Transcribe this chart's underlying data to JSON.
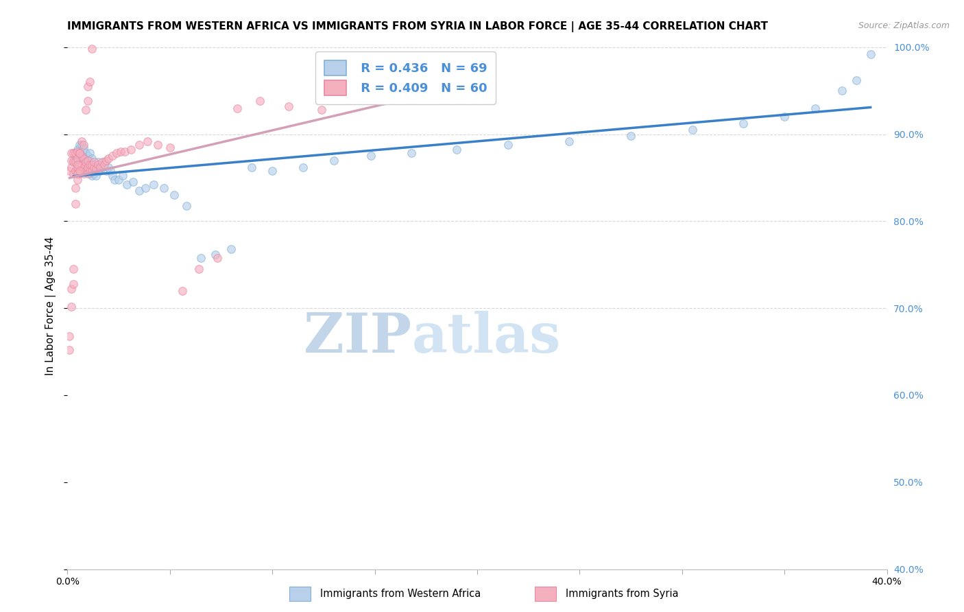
{
  "title": "IMMIGRANTS FROM WESTERN AFRICA VS IMMIGRANTS FROM SYRIA IN LABOR FORCE | AGE 35-44 CORRELATION CHART",
  "source": "Source: ZipAtlas.com",
  "ylabel": "In Labor Force | Age 35-44",
  "xlim": [
    0.0,
    0.4
  ],
  "ylim": [
    0.4,
    1.005
  ],
  "xticks": [
    0.0,
    0.05,
    0.1,
    0.15,
    0.2,
    0.25,
    0.3,
    0.35,
    0.4
  ],
  "xticklabels": [
    "0.0%",
    "",
    "",
    "",
    "",
    "",
    "",
    "",
    "40.0%"
  ],
  "yticks_right": [
    0.4,
    0.5,
    0.6,
    0.7,
    0.8,
    0.9,
    1.0
  ],
  "yticklabels_right": [
    "40.0%",
    "50.0%",
    "60.0%",
    "70.0%",
    "80.0%",
    "90.0%",
    "100.0%"
  ],
  "legend_r_blue": "R = 0.436",
  "legend_n_blue": "N = 69",
  "legend_r_pink": "R = 0.409",
  "legend_n_pink": "N = 60",
  "color_blue": "#b8d0ea",
  "color_pink": "#f5b0c0",
  "color_blue_text": "#4a90d9",
  "trendline_blue": "#3a80c9",
  "trendline_pink": "#d4a0b8",
  "watermark_color": "#ccdcf0",
  "background_color": "#ffffff",
  "blue_x": [
    0.003,
    0.004,
    0.005,
    0.005,
    0.006,
    0.006,
    0.007,
    0.007,
    0.007,
    0.008,
    0.008,
    0.008,
    0.009,
    0.009,
    0.009,
    0.01,
    0.01,
    0.01,
    0.011,
    0.011,
    0.011,
    0.011,
    0.012,
    0.012,
    0.012,
    0.013,
    0.013,
    0.014,
    0.014,
    0.015,
    0.015,
    0.016,
    0.017,
    0.018,
    0.019,
    0.02,
    0.021,
    0.022,
    0.023,
    0.025,
    0.027,
    0.029,
    0.032,
    0.035,
    0.038,
    0.042,
    0.047,
    0.052,
    0.058,
    0.065,
    0.072,
    0.08,
    0.09,
    0.1,
    0.115,
    0.13,
    0.148,
    0.168,
    0.19,
    0.215,
    0.245,
    0.275,
    0.305,
    0.33,
    0.35,
    0.365,
    0.378,
    0.385,
    0.392
  ],
  "blue_y": [
    0.87,
    0.875,
    0.868,
    0.882,
    0.872,
    0.888,
    0.865,
    0.875,
    0.888,
    0.862,
    0.872,
    0.885,
    0.858,
    0.868,
    0.878,
    0.858,
    0.865,
    0.875,
    0.855,
    0.862,
    0.87,
    0.878,
    0.852,
    0.862,
    0.872,
    0.855,
    0.865,
    0.852,
    0.862,
    0.858,
    0.868,
    0.858,
    0.862,
    0.868,
    0.858,
    0.862,
    0.858,
    0.852,
    0.848,
    0.848,
    0.852,
    0.842,
    0.845,
    0.835,
    0.838,
    0.842,
    0.838,
    0.83,
    0.818,
    0.758,
    0.762,
    0.768,
    0.862,
    0.858,
    0.862,
    0.87,
    0.875,
    0.878,
    0.882,
    0.888,
    0.892,
    0.898,
    0.905,
    0.912,
    0.92,
    0.93,
    0.95,
    0.962,
    0.992
  ],
  "pink_x": [
    0.001,
    0.002,
    0.002,
    0.002,
    0.003,
    0.003,
    0.003,
    0.004,
    0.004,
    0.004,
    0.005,
    0.005,
    0.005,
    0.005,
    0.006,
    0.006,
    0.006,
    0.007,
    0.007,
    0.007,
    0.008,
    0.008,
    0.008,
    0.009,
    0.009,
    0.01,
    0.01,
    0.01,
    0.011,
    0.011,
    0.012,
    0.012,
    0.013,
    0.013,
    0.014,
    0.015,
    0.016,
    0.017,
    0.018,
    0.019,
    0.02,
    0.022,
    0.024,
    0.026,
    0.028,
    0.031,
    0.035,
    0.039,
    0.044,
    0.05,
    0.056,
    0.064,
    0.073,
    0.083,
    0.094,
    0.108,
    0.124,
    0.142,
    0.162,
    0.185
  ],
  "pink_y": [
    0.858,
    0.862,
    0.87,
    0.878,
    0.855,
    0.868,
    0.878,
    0.858,
    0.868,
    0.878,
    0.855,
    0.862,
    0.872,
    0.88,
    0.855,
    0.865,
    0.878,
    0.858,
    0.865,
    0.875,
    0.855,
    0.862,
    0.872,
    0.858,
    0.868,
    0.855,
    0.862,
    0.87,
    0.858,
    0.865,
    0.858,
    0.865,
    0.862,
    0.868,
    0.86,
    0.865,
    0.862,
    0.868,
    0.865,
    0.87,
    0.872,
    0.875,
    0.878,
    0.88,
    0.88,
    0.882,
    0.888,
    0.892,
    0.888,
    0.885,
    0.72,
    0.745,
    0.758,
    0.93,
    0.938,
    0.932,
    0.928,
    0.94,
    0.952,
    0.958
  ],
  "pink_low_x": [
    0.001,
    0.001,
    0.002,
    0.002,
    0.003,
    0.003,
    0.004,
    0.004,
    0.005,
    0.005,
    0.005,
    0.006,
    0.006,
    0.007,
    0.008,
    0.009,
    0.01,
    0.01,
    0.011,
    0.012
  ],
  "pink_low_y": [
    0.668,
    0.652,
    0.702,
    0.722,
    0.728,
    0.745,
    0.82,
    0.838,
    0.848,
    0.855,
    0.865,
    0.858,
    0.878,
    0.892,
    0.888,
    0.928,
    0.938,
    0.955,
    0.96,
    0.998
  ],
  "grid_color": "#d8d8d8",
  "title_fontsize": 11,
  "axis_label_fontsize": 11,
  "tick_fontsize": 10,
  "legend_fontsize": 13,
  "dot_size": 70,
  "dot_alpha": 0.65,
  "dot_linewidth": 0.8,
  "dot_edgecolor_blue": "#80b0d8",
  "dot_edgecolor_pink": "#e888a0"
}
